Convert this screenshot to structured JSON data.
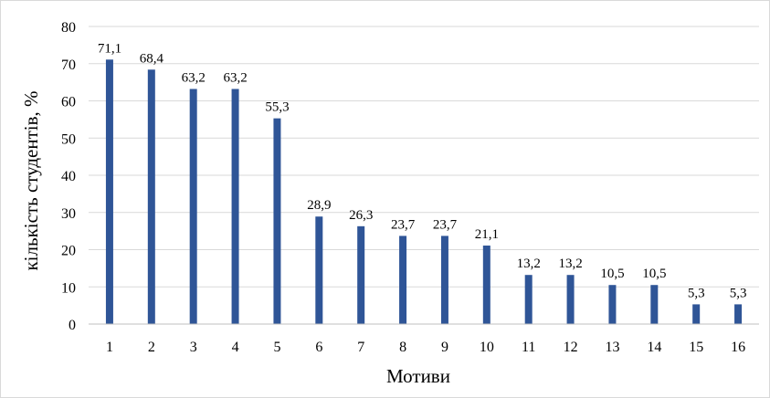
{
  "chart_data": {
    "type": "bar",
    "title": "",
    "xlabel": "Мотиви",
    "ylabel": "кількість студентів, %",
    "categories": [
      "1",
      "2",
      "3",
      "4",
      "5",
      "6",
      "7",
      "8",
      "9",
      "10",
      "11",
      "12",
      "13",
      "14",
      "15",
      "16"
    ],
    "values": [
      71.1,
      68.4,
      63.2,
      63.2,
      55.3,
      28.9,
      26.3,
      23.7,
      23.7,
      21.1,
      13.2,
      13.2,
      10.5,
      10.5,
      5.3,
      5.3
    ],
    "data_labels": [
      "71,1",
      "68,4",
      "63,2",
      "63,2",
      "55,3",
      "28,9",
      "26,3",
      "23,7",
      "23,7",
      "21,1",
      "13,2",
      "13,2",
      "10,5",
      "10,5",
      "5,3",
      "5,3"
    ],
    "ylim": [
      0,
      80
    ],
    "yticks": [
      0,
      10,
      20,
      30,
      40,
      50,
      60,
      70,
      80
    ],
    "grid": true,
    "legend": "none",
    "colors": {
      "bar": "#2f5597",
      "grid": "#d9d9d9",
      "axis": "#bfbfbf"
    }
  }
}
